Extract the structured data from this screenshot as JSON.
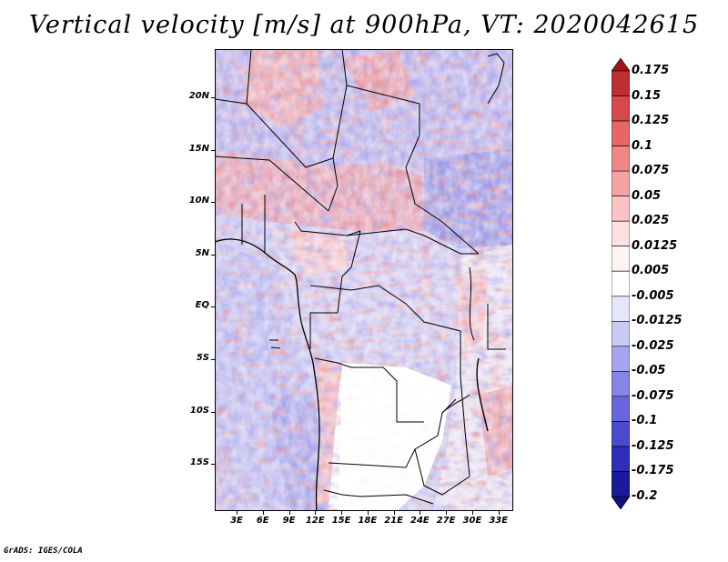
{
  "title": "Vertical velocity [m/s] at 900hPa, VT: 2020042615",
  "credit": "GrADS: IGES/COLA",
  "lat_labels": [
    "20N",
    "15N",
    "10N",
    "5N",
    "EQ",
    "5S",
    "10S",
    "15S"
  ],
  "lat_values": [
    20,
    15,
    10,
    5,
    0,
    -5,
    -10,
    -15
  ],
  "lon_labels": [
    "3E",
    "6E",
    "9E",
    "12E",
    "15E",
    "18E",
    "21E",
    "24E",
    "27E",
    "30E",
    "33E"
  ],
  "lon_values": [
    3,
    6,
    9,
    12,
    15,
    18,
    21,
    24,
    27,
    30,
    33
  ],
  "map_extent": {
    "lon_min": 0.5,
    "lon_max": 34.7,
    "lat_min": -19.5,
    "lat_max": 24.6
  },
  "colorbar": {
    "labels": [
      "0.175",
      "0.15",
      "0.125",
      "0.1",
      "0.075",
      "0.05",
      "0.025",
      "0.0125",
      "0.005",
      "-0.005",
      "-0.0125",
      "-0.025",
      "-0.05",
      "-0.075",
      "-0.1",
      "-0.125",
      "-0.175",
      "-0.2"
    ],
    "colors": [
      "#a0141e",
      "#be2d32",
      "#d8484a",
      "#e86666",
      "#f08686",
      "#f6a3a3",
      "#fbc3c3",
      "#fde0e0",
      "#fff4f4",
      "#ffffff",
      "#e6e6fa",
      "#c9c9f5",
      "#a6a6ee",
      "#8585e6",
      "#6666dd",
      "#4a4ace",
      "#2e2eb8",
      "#1b1b9a",
      "#10107a"
    ]
  }
}
